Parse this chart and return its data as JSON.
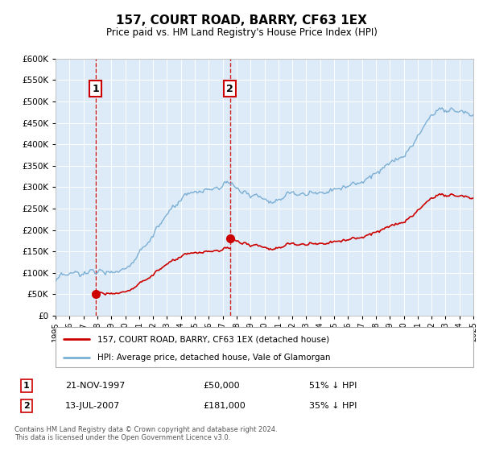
{
  "title": "157, COURT ROAD, BARRY, CF63 1EX",
  "subtitle": "Price paid vs. HM Land Registry's House Price Index (HPI)",
  "legend_line1": "157, COURT ROAD, BARRY, CF63 1EX (detached house)",
  "legend_line2": "HPI: Average price, detached house, Vale of Glamorgan",
  "annotation1_date": "21-NOV-1997",
  "annotation1_price": 50000,
  "annotation1_pct": "51% ↓ HPI",
  "annotation1_year": 1997.89,
  "annotation2_date": "13-JUL-2007",
  "annotation2_price": 181000,
  "annotation2_pct": "35% ↓ HPI",
  "annotation2_year": 2007.53,
  "property_color": "#cc0000",
  "hpi_color": "#7bafd4",
  "plot_bg": "#ddeaf7",
  "footer": "Contains HM Land Registry data © Crown copyright and database right 2024.\nThis data is licensed under the Open Government Licence v3.0.",
  "ylim": [
    0,
    600000
  ],
  "yticks": [
    0,
    50000,
    100000,
    150000,
    200000,
    250000,
    300000,
    350000,
    400000,
    450000,
    500000,
    550000,
    600000
  ],
  "ytick_labels": [
    "£0",
    "£50K",
    "£100K",
    "£150K",
    "£200K",
    "£250K",
    "£300K",
    "£350K",
    "£400K",
    "£450K",
    "£500K",
    "£550K",
    "£600K"
  ]
}
